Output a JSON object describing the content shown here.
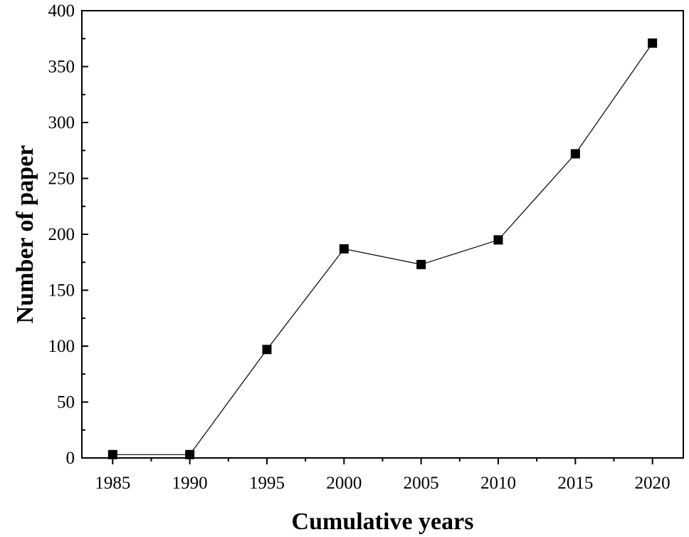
{
  "chart_data": {
    "type": "line",
    "xlabel": "Cumulative years",
    "ylabel": "Number of paper",
    "x": [
      1985,
      1990,
      1995,
      2000,
      2005,
      2010,
      2015,
      2020
    ],
    "series": [
      {
        "values": [
          3,
          3,
          97,
          187,
          173,
          195,
          272,
          371
        ],
        "marker": "square",
        "color": "#000000"
      }
    ],
    "xlim": [
      1983,
      2022
    ],
    "ylim": [
      0,
      400
    ],
    "x_ticks": [
      1985,
      1990,
      1995,
      2000,
      2005,
      2010,
      2015,
      2020
    ],
    "y_ticks": [
      0,
      50,
      100,
      150,
      200,
      250,
      300,
      350,
      400
    ],
    "x_tick_labels": [
      "1985",
      "1990",
      "1995",
      "2000",
      "2005",
      "2010",
      "2015",
      "2020"
    ],
    "y_tick_labels": [
      "0",
      "50",
      "100",
      "150",
      "200",
      "250",
      "300",
      "350",
      "400"
    ],
    "grid": false,
    "legend": false
  }
}
